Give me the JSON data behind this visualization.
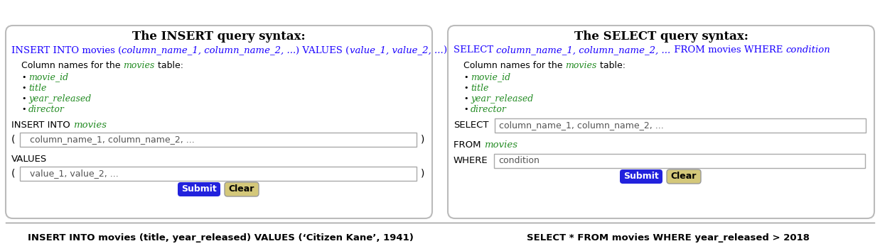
{
  "bg_color": "#ffffff",
  "panel_border": "#bbbbbb",
  "divider_color": "#999999",
  "left_title": "The INSERT query syntax:",
  "right_title": "The SELECT query syntax:",
  "columns": [
    "movie_id",
    "title",
    "year_released",
    "director"
  ],
  "col_color": "#228B22",
  "blue_color": "#1a00ff",
  "submit_bg": "#2222DD",
  "submit_fg": "#ffffff",
  "clear_bg": "#d4c87a",
  "clear_fg": "#000000",
  "input_border": "#aaaaaa",
  "input_bg": "#ffffff",
  "bottom_text_left": "INSERT INTO movies (title, year_released) VALUES (‘Citizen Kane’, 1941)",
  "bottom_text_right": "SELECT * FROM movies WHERE year_released > 2018",
  "fig_w": 12.38,
  "fig_h": 3.54,
  "dpi": 100
}
